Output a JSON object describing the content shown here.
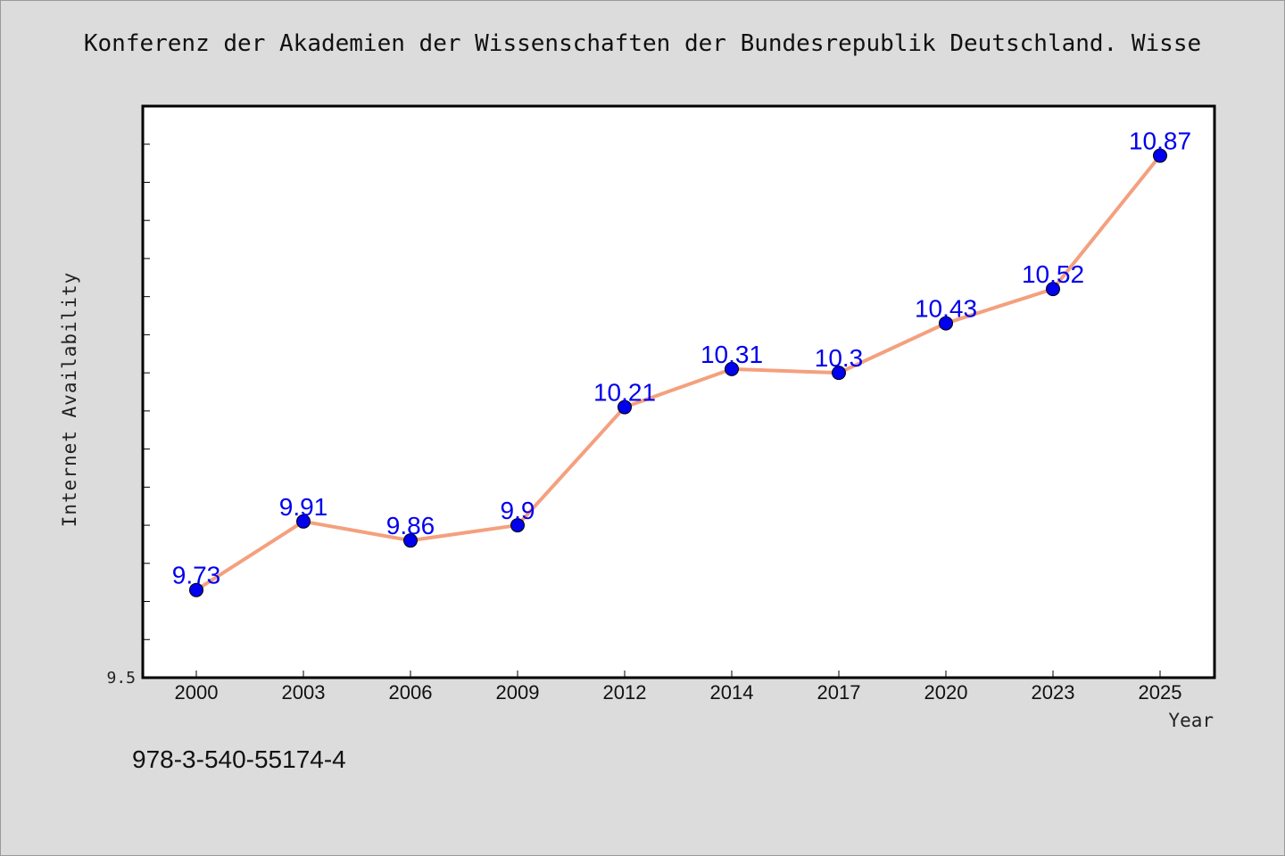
{
  "chart_data": {
    "type": "line",
    "title": "Konferenz der Akademien der Wissenschaften der Bundesrepublik Deutschland. Wisse",
    "xlabel": "Year",
    "ylabel": "Internet Availability",
    "categories": [
      "2000",
      "2003",
      "2006",
      "2009",
      "2012",
      "2014",
      "2017",
      "2020",
      "2023",
      "2025"
    ],
    "series": [
      {
        "values": [
          9.73,
          9.91,
          9.86,
          9.9,
          10.21,
          10.31,
          10.3,
          10.43,
          10.52,
          10.87
        ],
        "data_labels": [
          "9.73",
          "9.91",
          "9.86",
          "9.9",
          "10.21",
          "10.31",
          "10.3",
          "10.43",
          "10.52",
          "10.87"
        ]
      }
    ],
    "ylim": [
      9.5,
      11.0
    ],
    "y_tick_label": "9.5",
    "grid": false,
    "line_color": "#f4a07e",
    "marker_color": "#0000ee",
    "label_color": "#0000ee"
  },
  "footer_text": "978-3-540-55174-4"
}
